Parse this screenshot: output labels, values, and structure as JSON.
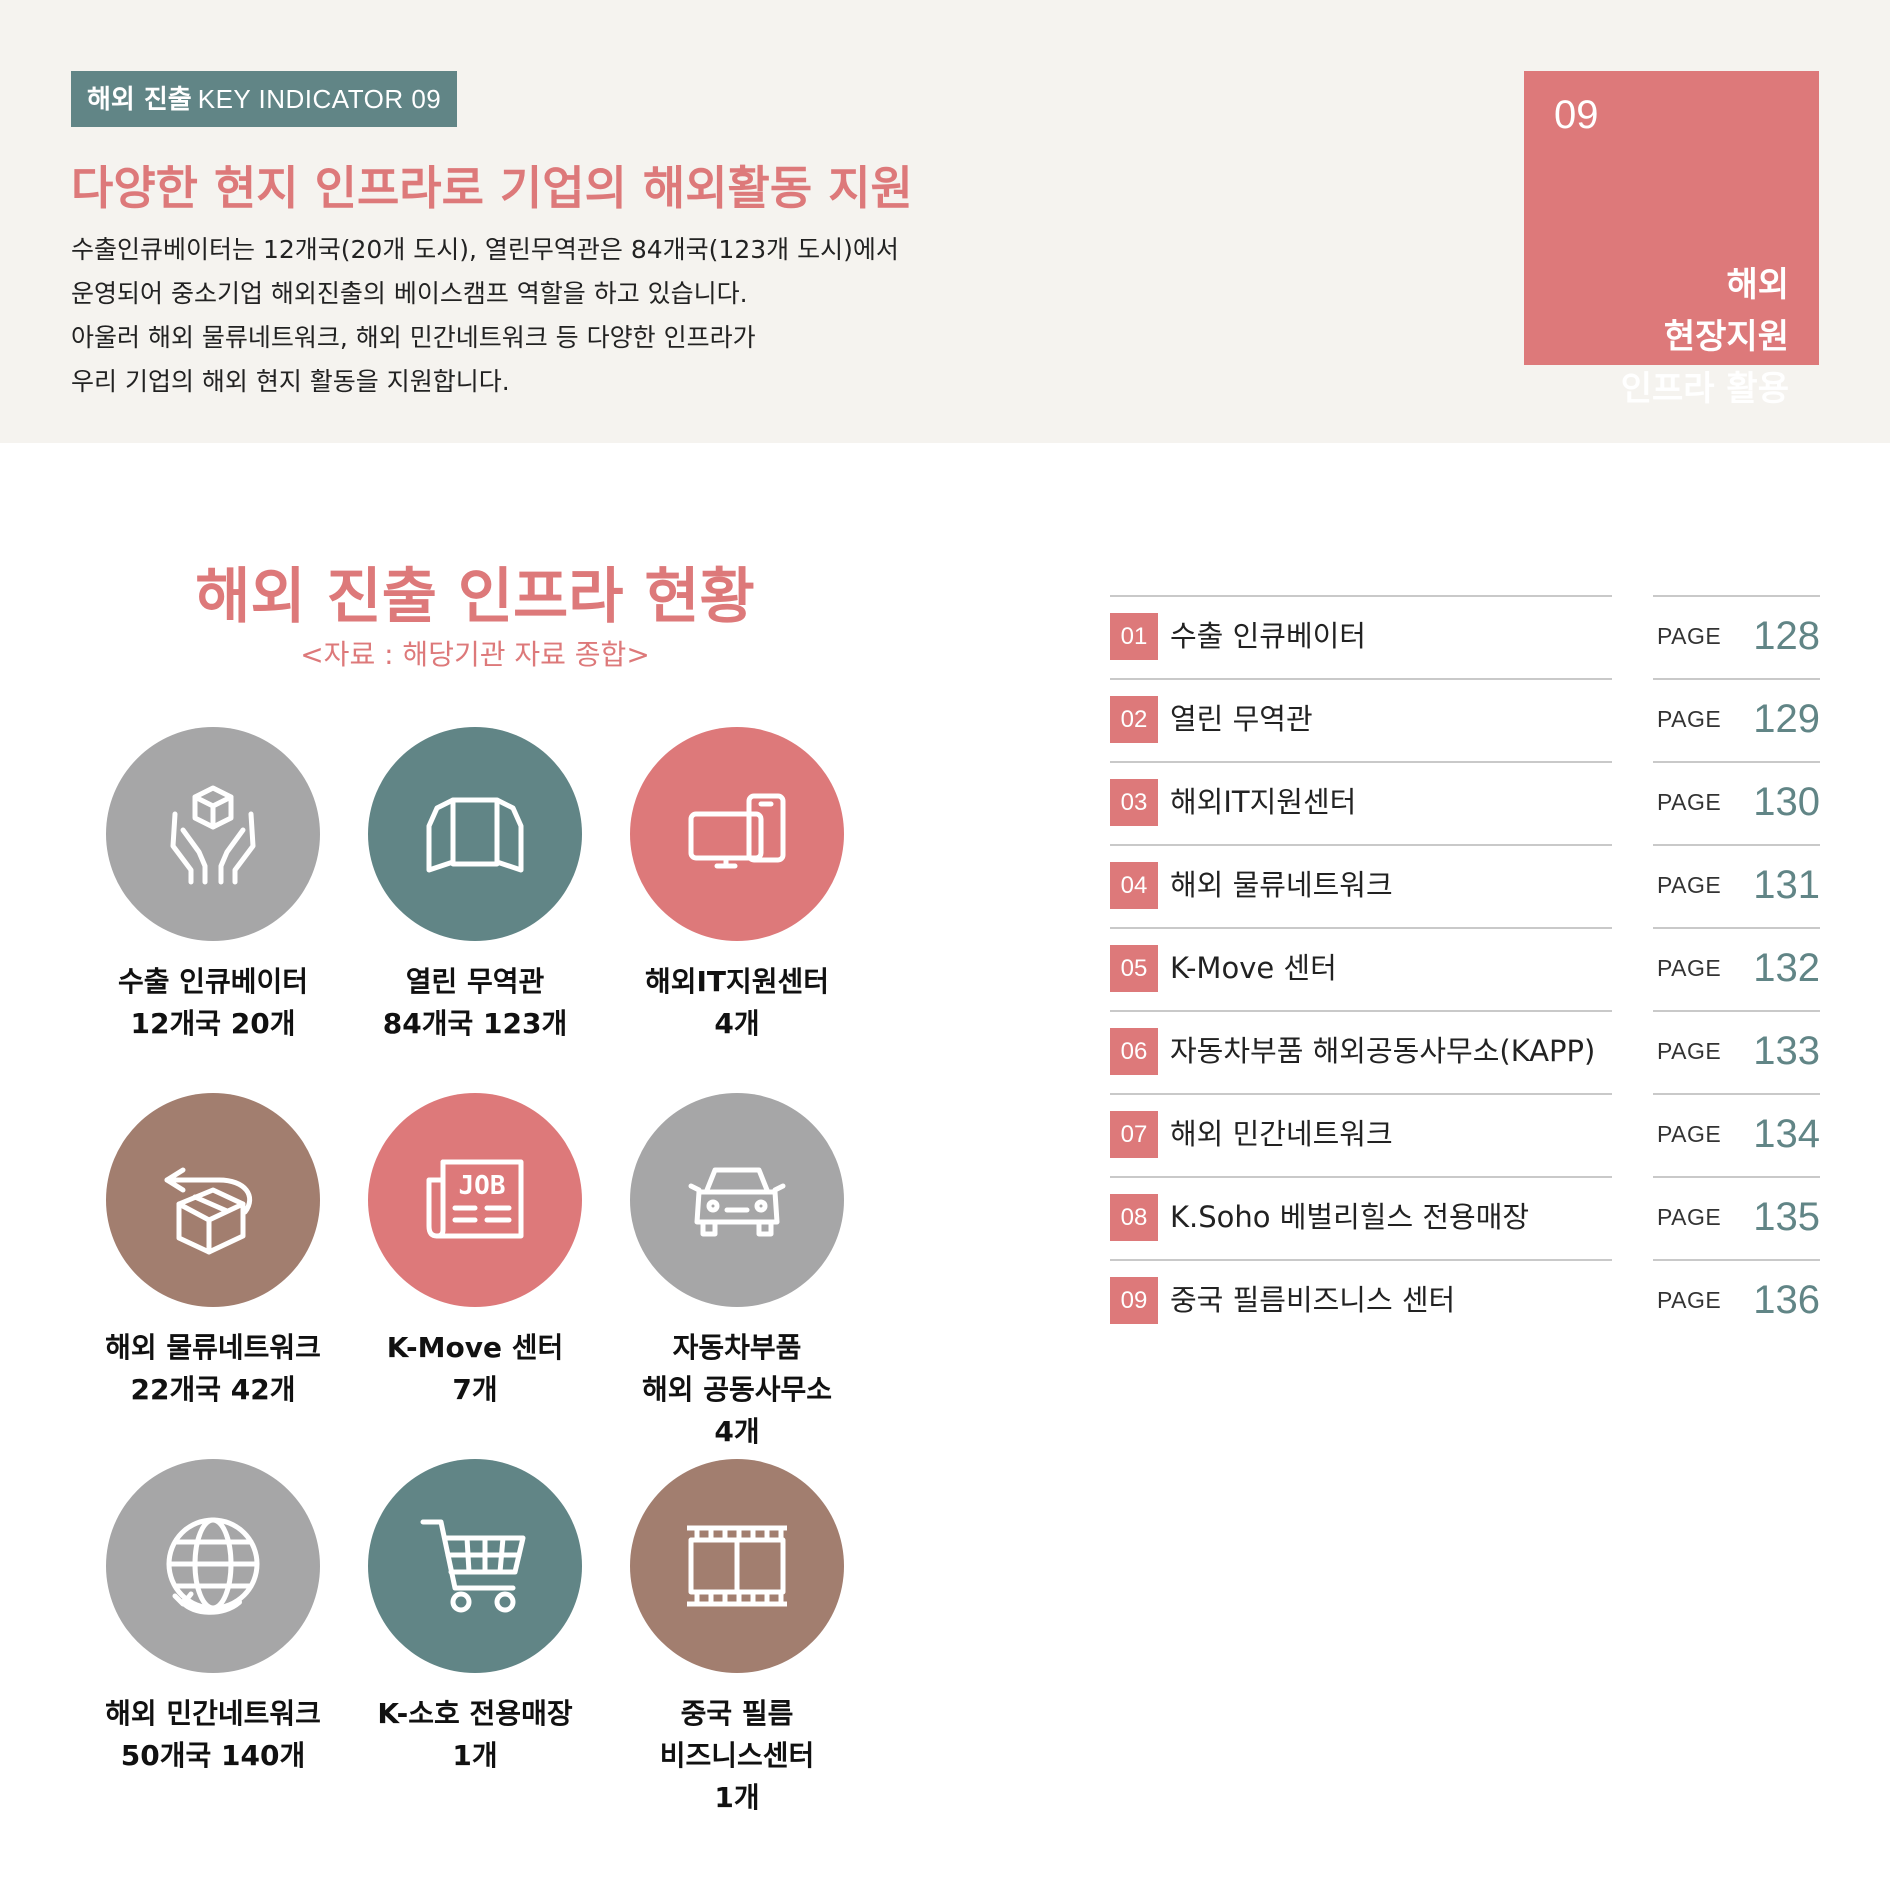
{
  "header": {
    "kicker_ko": "해외 진출",
    "kicker_en": "KEY INDICATOR 09",
    "headline": "다양한 현지 인프라로 기업의 해외활동 지원",
    "lead": [
      "수출인큐베이터는 12개국(20개 도시), 열린무역관은 84개국(123개 도시)에서",
      "운영되어 중소기업 해외진출의 베이스캠프 역할을 하고 있습니다.",
      "아울러 해외 물류네트워크, 해외 민간네트워크 등 다양한 인프라가",
      "우리 기업의 해외 현지 활동을 지원합니다."
    ],
    "badge": {
      "number": "09",
      "lines": [
        "해외",
        "현장지원",
        "인프라 활용"
      ]
    }
  },
  "section": {
    "title": "해외 진출 인프라 현황",
    "source": "<자료 : 해당기관 자료 종합>"
  },
  "items": [
    {
      "icon": "hands-box-icon",
      "color": "#a6a6a7",
      "lines": [
        "수출 인큐베이터",
        "12개국 20개"
      ]
    },
    {
      "icon": "open-book-icon",
      "color": "#618586",
      "lines": [
        "열린 무역관",
        "84개국 123개"
      ]
    },
    {
      "icon": "devices-icon",
      "color": "#dd797a",
      "lines": [
        "해외IT지원센터",
        "4개"
      ]
    },
    {
      "icon": "package-return-icon",
      "color": "#a27e6f",
      "lines": [
        "해외 물류네트워크",
        "22개국 42개"
      ]
    },
    {
      "icon": "job-newspaper-icon",
      "color": "#dd797a",
      "lines": [
        "K-Move 센터",
        "7개"
      ]
    },
    {
      "icon": "car-icon",
      "color": "#a6a6a7",
      "lines": [
        "자동차부품",
        "해외 공동사무소",
        "4개"
      ]
    },
    {
      "icon": "globe-icon",
      "color": "#a6a6a7",
      "lines": [
        "해외 민간네트워크",
        "50개국 140개"
      ]
    },
    {
      "icon": "shopping-cart-icon",
      "color": "#618586",
      "lines": [
        "K-소호 전용매장",
        "1개"
      ]
    },
    {
      "icon": "film-strip-icon",
      "color": "#a27e6f",
      "lines": [
        "중국 필름",
        "비즈니스센터",
        "1개"
      ]
    }
  ],
  "index": {
    "page_label": "PAGE",
    "rows": [
      {
        "num": "01",
        "label": "수출 인큐베이터",
        "page": "128"
      },
      {
        "num": "02",
        "label": "열린 무역관",
        "page": "129"
      },
      {
        "num": "03",
        "label": "해외IT지원센터",
        "page": "130"
      },
      {
        "num": "04",
        "label": "해외 물류네트워크",
        "page": "131"
      },
      {
        "num": "05",
        "label": "K-Move 센터",
        "page": "132"
      },
      {
        "num": "06",
        "label": "자동차부품 해외공동사무소(KAPP)",
        "page": "133"
      },
      {
        "num": "07",
        "label": "해외 민간네트워크",
        "page": "134"
      },
      {
        "num": "08",
        "label": "K.Soho 베벌리힐스 전용매장",
        "page": "135"
      },
      {
        "num": "09",
        "label": "중국 필름비즈니스 센터",
        "page": "136"
      }
    ]
  },
  "colors": {
    "accent_pink": "#dd797a",
    "accent_teal": "#618586",
    "gray": "#a6a6a7",
    "brown": "#a27e6f",
    "header_bg": "#f5f3ef"
  }
}
